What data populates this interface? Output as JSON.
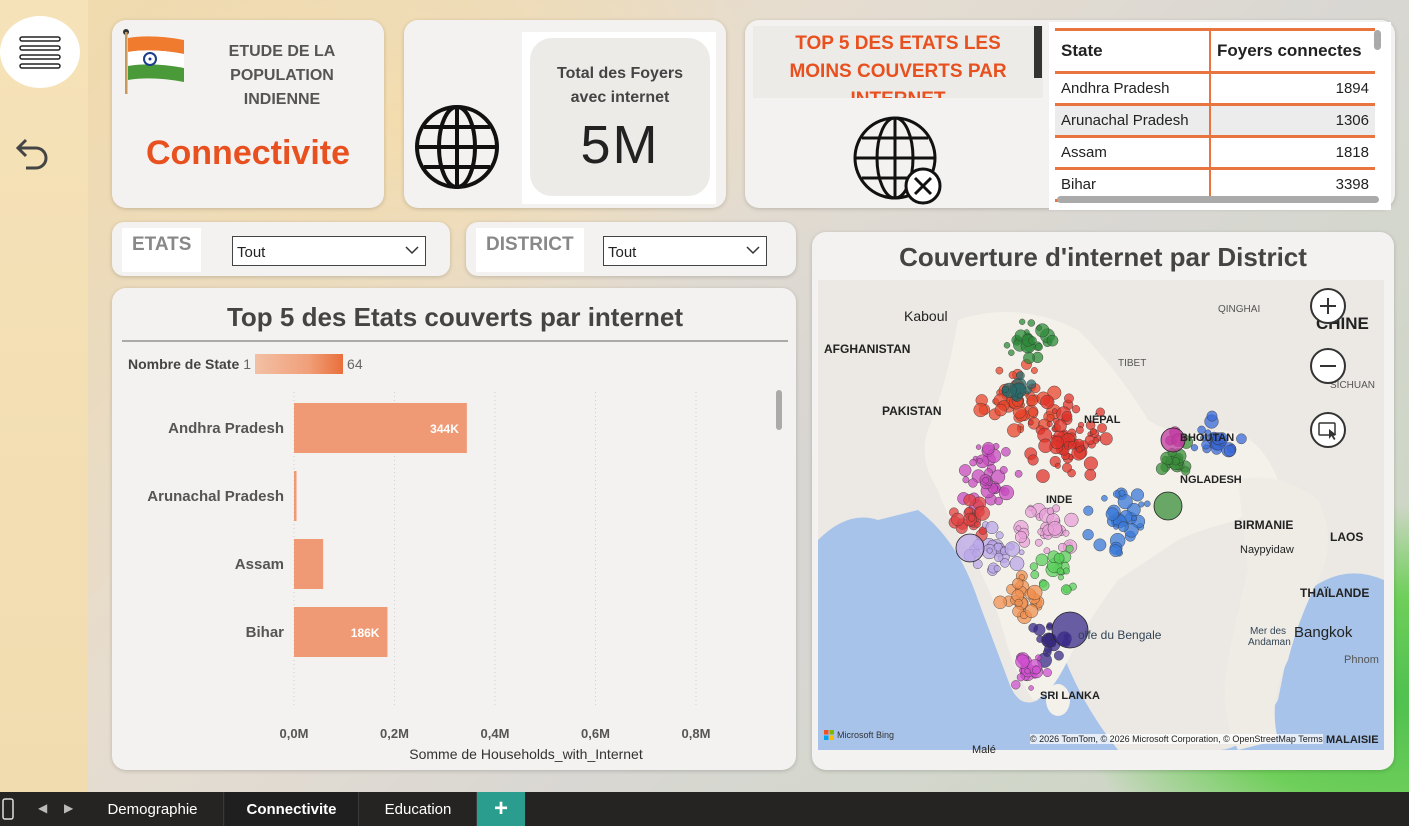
{
  "app": {
    "title_line": "ETUDE DE LA POPULATION INDIENNE",
    "title_lines": [
      "ETUDE DE LA",
      "POPULATION",
      "INDIENNE"
    ],
    "page_name": "Connectivite",
    "accent": "#e8501f"
  },
  "kpi": {
    "label_lines": [
      "Total des Foyers",
      "avec internet"
    ],
    "value": "5M"
  },
  "least_covered": {
    "title_lines": [
      "TOP 5 DES ETATS LES",
      "MOINS COUVERTS PAR",
      "INTERNET"
    ],
    "columns": [
      "State",
      "Foyers connectes"
    ],
    "rows": [
      {
        "state": "Andhra Pradesh",
        "value": "1894"
      },
      {
        "state": "Arunachal Pradesh",
        "value": "1306"
      },
      {
        "state": "Assam",
        "value": "1818"
      },
      {
        "state": "Bihar",
        "value": "3398"
      }
    ]
  },
  "filters": {
    "etats": {
      "label": "ETATS",
      "value": "Tout"
    },
    "district": {
      "label": "DISTRICT",
      "value": "Tout"
    }
  },
  "bar_chart": {
    "title": "Top 5 des Etats couverts par internet",
    "legend_label": "Nombre de State",
    "legend_min": "1",
    "legend_max": "64",
    "xlabel": "Somme de Households_with_Internet",
    "bar_color": "#ef9a74"
  },
  "chart_data": {
    "type": "bar",
    "orientation": "horizontal",
    "title": "Top 5 des Etats couverts par internet",
    "categories": [
      "Andhra Pradesh",
      "Arunachal Pradesh",
      "Assam",
      "Bihar"
    ],
    "values": [
      344000,
      5000,
      58000,
      186000
    ],
    "data_labels": [
      "344K",
      "",
      "",
      "186K"
    ],
    "xlabel": "Somme de Households_with_Internet",
    "ylabel": "",
    "xlim": [
      0,
      800000
    ],
    "x_ticks": [
      "0,0M",
      "0,2M",
      "0,4M",
      "0,6M",
      "0,8M"
    ],
    "grid": true
  },
  "map": {
    "title": "Couverture d'internet par District",
    "labels": {
      "kaboul": "Kaboul",
      "afghanistan": "AFGHANISTAN",
      "pakistan": "PAKISTAN",
      "tibet": "TIBET",
      "qinghai": "QINGHAI",
      "chine": "CHINE",
      "sichuan": "SICHUAN",
      "nepal": "NÉPAL",
      "bhoutan": "BHOUTAN",
      "bangladesh": "NGLADESH",
      "birmanie": "BIRMANIE",
      "naypyidaw": "Naypyidaw",
      "laos": "LAOS",
      "thailande": "THAÏLANDE",
      "bangkok": "Bangkok",
      "mer_andaman": "Mer des Andaman",
      "phnom": "Phnom",
      "golfe": "olfe du Bengale",
      "srilanka": "SRI LANKA",
      "inde": "INDE",
      "male": "Malé",
      "malaisie": "MALAISIE"
    },
    "credits": "© 2026 TomTom, © 2026 Microsoft Corporation, © OpenStreetMap Terms",
    "provider": "Microsoft Bing"
  },
  "tabs": [
    {
      "label": "Demographie",
      "active": false
    },
    {
      "label": "Connectivite",
      "active": true
    },
    {
      "label": "Education",
      "active": false
    }
  ],
  "add_tab_label": "+"
}
